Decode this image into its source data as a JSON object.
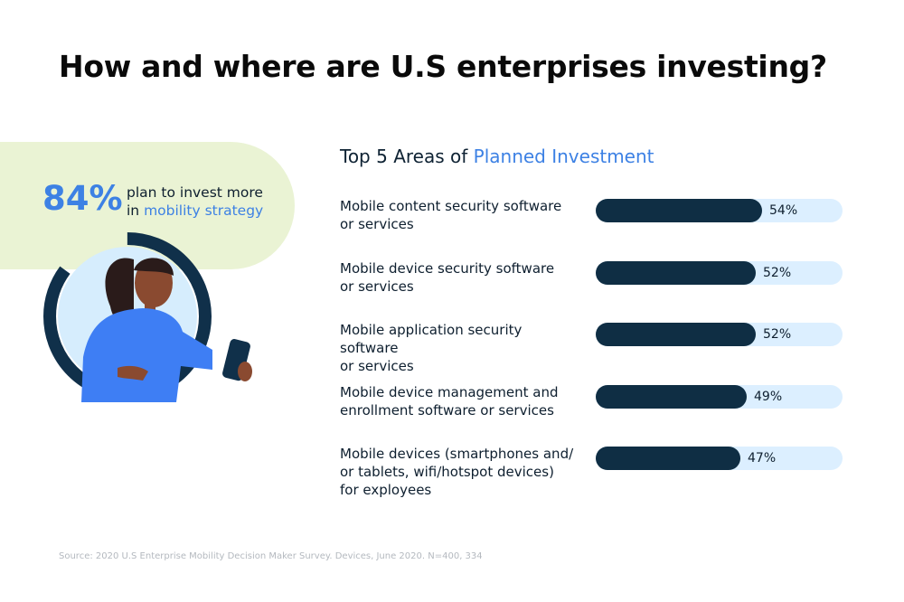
{
  "header": {
    "title": "How and where are U.S enterprises investing?"
  },
  "stat": {
    "value": "84%",
    "line1": "plan to invest more",
    "line2_prefix": "in ",
    "line2_highlight": "mobility strategy"
  },
  "chart_title": {
    "prefix": "Top 5 Areas of ",
    "highlight": "Planned Investment"
  },
  "chart_data": {
    "type": "bar",
    "orientation": "horizontal",
    "title": "Top 5 Areas of Planned Investment",
    "categories": [
      "Mobile content security software or services",
      "Mobile device security software or services",
      "Mobile application security software or services",
      "Mobile device management and enrollment software or services",
      "Mobile devices (smartphones and/ or tablets, wifi/hotspot devices) for exployees"
    ],
    "values": [
      54,
      52,
      52,
      49,
      47
    ],
    "value_labels": [
      "54%",
      "52%",
      "52%",
      "49%",
      "47%"
    ],
    "unit": "%",
    "grid": false,
    "colors": {
      "fill": "#0f2e44",
      "track": "#dcefff"
    },
    "rows": [
      {
        "label_lines": [
          "Mobile content security software",
          "or services"
        ]
      },
      {
        "label_lines": [
          "Mobile device security software",
          "or services"
        ]
      },
      {
        "label_lines": [
          "Mobile application security software",
          "or services"
        ]
      },
      {
        "label_lines": [
          "Mobile device management and",
          "enrollment software or services"
        ]
      },
      {
        "label_lines": [
          "Mobile devices (smartphones and/",
          "or tablets, wifi/hotspot devices)",
          "for exployees"
        ]
      }
    ]
  },
  "footer": {
    "source": "Source: 2020 U.S Enterprise Mobility Decision Maker Survey. Devices, June 2020. N=400, 334"
  },
  "colors": {
    "accent": "#3d81e4",
    "dark": "#0f2e44",
    "light_blue": "#dcefff",
    "pill": "#eaf3d4"
  },
  "illustration": {
    "icon": "person-with-phone-illustration"
  }
}
